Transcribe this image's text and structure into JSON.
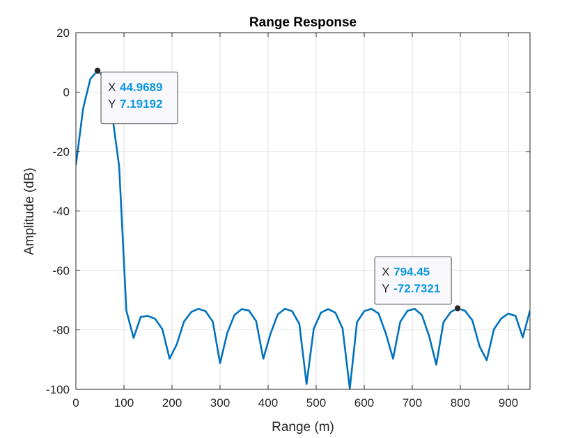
{
  "chart_data": {
    "type": "line",
    "title": "Range Response",
    "xlabel": "Range (m)",
    "ylabel": "Amplitude (dB)",
    "xlim": [
      0,
      945
    ],
    "ylim": [
      -100,
      20
    ],
    "xticks": [
      0,
      100,
      200,
      300,
      400,
      500,
      600,
      700,
      800,
      900
    ],
    "yticks": [
      20,
      0,
      -20,
      -40,
      -60,
      -80,
      -100
    ],
    "grid": true,
    "line_color": "#0072bd",
    "series": [
      {
        "x": [
          0,
          15,
          30,
          44.9689,
          60,
          75,
          90,
          105,
          120,
          135,
          150,
          165,
          180,
          195,
          210,
          225,
          240,
          255,
          270,
          285,
          300,
          315,
          330,
          345,
          360,
          375,
          390,
          405,
          420,
          435,
          450,
          465,
          480,
          495,
          510,
          525,
          540,
          555,
          570,
          585,
          600,
          615,
          630,
          645,
          660,
          675,
          690,
          705,
          720,
          735,
          750,
          765,
          780,
          794.45,
          810,
          825,
          840,
          855,
          870,
          885,
          900,
          915,
          930,
          945
        ],
        "y": [
          -24.5,
          -5.5,
          4.4,
          7.19,
          5.0,
          -7.0,
          -25.0,
          -73.5,
          -82.7,
          -75.6,
          -75.3,
          -76.3,
          -79.8,
          -89.7,
          -84.8,
          -77.2,
          -74.0,
          -72.9,
          -73.7,
          -77.3,
          -91.2,
          -81.0,
          -75.0,
          -73.0,
          -73.5,
          -77.0,
          -89.7,
          -81.3,
          -74.8,
          -72.9,
          -73.7,
          -78.0,
          -98.2,
          -79.6,
          -74.2,
          -73.0,
          -74.2,
          -79.5,
          -99.8,
          -77.4,
          -73.7,
          -72.9,
          -74.5,
          -81.2,
          -89.7,
          -77.3,
          -73.6,
          -72.9,
          -75.0,
          -82.0,
          -91.7,
          -77.4,
          -74.0,
          -72.73,
          -73.6,
          -76.8,
          -85.5,
          -90.2,
          -79.8,
          -76.2,
          -74.5,
          -75.3,
          -82.5,
          -73.5
        ]
      }
    ],
    "annotations": [
      {
        "x_value": 44.9689,
        "y_value": 7.19192,
        "x_key": "X",
        "x_text": "44.9689",
        "y_key": "Y",
        "y_text": "7.19192"
      },
      {
        "x_value": 794.45,
        "y_value": -72.7321,
        "x_key": "X",
        "x_text": "794.45",
        "y_key": "Y",
        "y_text": "-72.7321"
      }
    ]
  }
}
